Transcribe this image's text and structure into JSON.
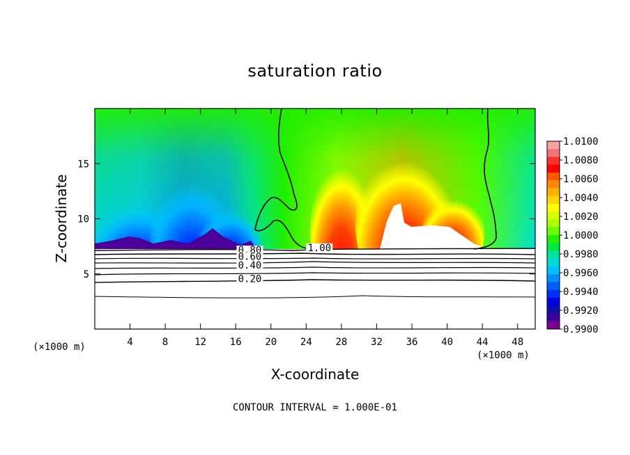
{
  "chart_data": {
    "type": "heatmap",
    "title": "saturation ratio",
    "xlabel": "X-coordinate",
    "ylabel": "Z-coordinate",
    "x_unit": "(×1000 m)",
    "x_range": [
      0,
      50
    ],
    "y_range": [
      0,
      20
    ],
    "x_ticks": [
      4,
      8,
      12,
      16,
      20,
      24,
      28,
      32,
      36,
      40,
      44,
      48
    ],
    "y_ticks": [
      5,
      10,
      15
    ],
    "colorbar": {
      "levels": [
        "1.0100",
        "1.0080",
        "1.0060",
        "1.0040",
        "1.0020",
        "1.0000",
        "0.9980",
        "0.9960",
        "0.9940",
        "0.9920",
        "0.9900"
      ],
      "colors": [
        "#f5a3a3",
        "#ef7575",
        "#ff3030",
        "#ff0000",
        "#ff5a00",
        "#ff8a00",
        "#ffb300",
        "#ffd600",
        "#ffff00",
        "#d8ff00",
        "#a8ff00",
        "#66ff00",
        "#22f000",
        "#00e840",
        "#00e0a0",
        "#00d8d8",
        "#00c0ff",
        "#0090ff",
        "#0060ff",
        "#0030ff",
        "#0000e0",
        "#1010b0",
        "#4000a0",
        "#800090"
      ]
    },
    "contours": [
      {
        "label": "1.00",
        "x": 25.5,
        "y": 7.2
      },
      {
        "label": "0.80",
        "x": 17.6,
        "y": 7.0
      },
      {
        "label": "0.60",
        "x": 17.6,
        "y": 6.4
      },
      {
        "label": "0.40",
        "x": 17.6,
        "y": 5.6
      },
      {
        "label": "0.20",
        "x": 17.6,
        "y": 4.4
      }
    ],
    "contour_interval_text": "CONTOUR INTERVAL = 1.000E-01"
  }
}
